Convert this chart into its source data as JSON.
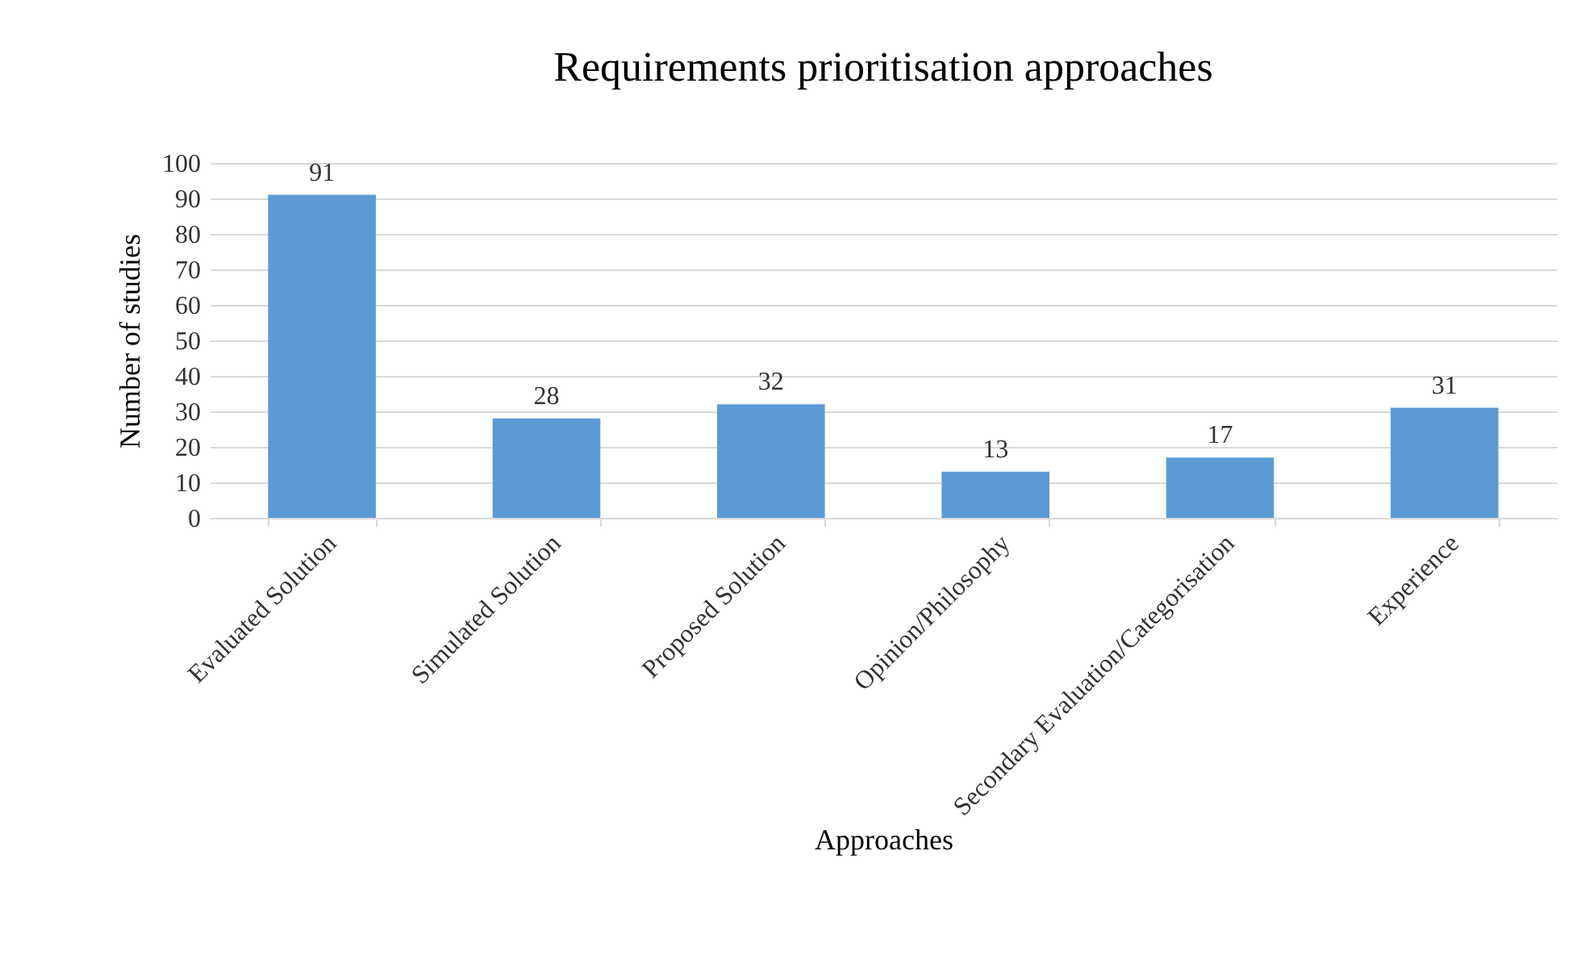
{
  "chart_data": {
    "type": "bar",
    "title": "Requirements prioritisation approaches",
    "xlabel": "Approaches",
    "ylabel": "Number of studies",
    "categories": [
      "Evaluated Solution",
      "Simulated Solution",
      "Proposed Solution",
      "Opinion/Philosophy",
      "Secondary Evaluation/Categorisation",
      "Experience"
    ],
    "values": [
      91,
      28,
      32,
      13,
      17,
      31
    ],
    "color": "#5b9bd5",
    "data_labels": true,
    "ylim": [
      0,
      100
    ],
    "yticks": [
      0,
      10,
      20,
      30,
      40,
      50,
      60,
      70,
      80,
      90,
      100
    ],
    "grid": "y"
  }
}
